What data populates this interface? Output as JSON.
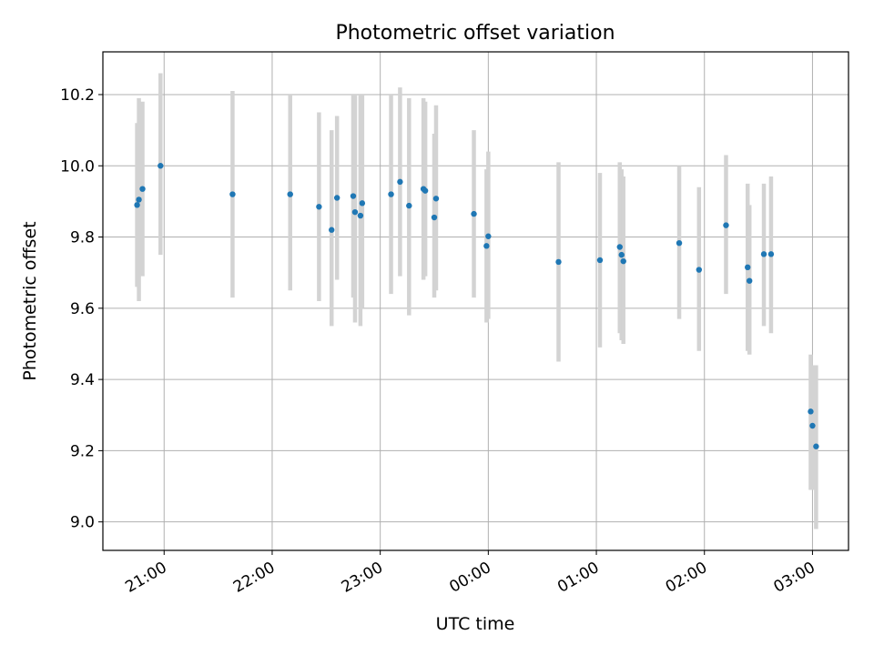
{
  "chart_data": {
    "type": "scatter",
    "title": "Photometric offset variation",
    "xlabel": "UTC time",
    "ylabel": "Photometric offset",
    "x_tick_labels": [
      "21:00",
      "22:00",
      "23:00",
      "00:00",
      "01:00",
      "02:00",
      "03:00"
    ],
    "y_tick_labels": [
      "9.0",
      "9.2",
      "9.4",
      "9.6",
      "9.8",
      "10.0",
      "10.2"
    ],
    "ylim": [
      8.92,
      10.32
    ],
    "grid": true,
    "errorbar_color": "#d3d3d3",
    "marker_color": "#1f77b4",
    "points": [
      {
        "x": "20:45",
        "y": 9.89,
        "lo": 9.66,
        "hi": 10.12
      },
      {
        "x": "20:46",
        "y": 9.905,
        "lo": 9.62,
        "hi": 10.19
      },
      {
        "x": "20:48",
        "y": 9.935,
        "lo": 9.69,
        "hi": 10.18
      },
      {
        "x": "20:58",
        "y": 10.0,
        "lo": 9.75,
        "hi": 10.26
      },
      {
        "x": "21:38",
        "y": 9.92,
        "lo": 9.63,
        "hi": 10.21
      },
      {
        "x": "22:10",
        "y": 9.92,
        "lo": 9.65,
        "hi": 10.2
      },
      {
        "x": "22:26",
        "y": 9.885,
        "lo": 9.62,
        "hi": 10.15
      },
      {
        "x": "22:33",
        "y": 9.82,
        "lo": 9.55,
        "hi": 10.1
      },
      {
        "x": "22:36",
        "y": 9.91,
        "lo": 9.68,
        "hi": 10.14
      },
      {
        "x": "22:45",
        "y": 9.915,
        "lo": 9.63,
        "hi": 10.2
      },
      {
        "x": "22:46",
        "y": 9.87,
        "lo": 9.56,
        "hi": 10.2
      },
      {
        "x": "22:49",
        "y": 9.86,
        "lo": 9.55,
        "hi": 10.2
      },
      {
        "x": "22:50",
        "y": 9.895,
        "lo": 9.6,
        "hi": 10.2
      },
      {
        "x": "23:06",
        "y": 9.92,
        "lo": 9.64,
        "hi": 10.2
      },
      {
        "x": "23:11",
        "y": 9.955,
        "lo": 9.69,
        "hi": 10.22
      },
      {
        "x": "23:16",
        "y": 9.888,
        "lo": 9.58,
        "hi": 10.19
      },
      {
        "x": "23:24",
        "y": 9.935,
        "lo": 9.68,
        "hi": 10.19
      },
      {
        "x": "23:25",
        "y": 9.93,
        "lo": 9.69,
        "hi": 10.18
      },
      {
        "x": "23:30",
        "y": 9.855,
        "lo": 9.63,
        "hi": 10.09
      },
      {
        "x": "23:31",
        "y": 9.908,
        "lo": 9.65,
        "hi": 10.17
      },
      {
        "x": "23:52",
        "y": 9.865,
        "lo": 9.63,
        "hi": 10.1
      },
      {
        "x": "23:59",
        "y": 9.775,
        "lo": 9.56,
        "hi": 9.99
      },
      {
        "x": "00:00",
        "y": 9.802,
        "lo": 9.57,
        "hi": 10.04
      },
      {
        "x": "00:39",
        "y": 9.73,
        "lo": 9.45,
        "hi": 10.01
      },
      {
        "x": "01:02",
        "y": 9.735,
        "lo": 9.49,
        "hi": 9.98
      },
      {
        "x": "01:13",
        "y": 9.772,
        "lo": 9.53,
        "hi": 10.01
      },
      {
        "x": "01:14",
        "y": 9.75,
        "lo": 9.51,
        "hi": 9.99
      },
      {
        "x": "01:15",
        "y": 9.732,
        "lo": 9.5,
        "hi": 9.97
      },
      {
        "x": "01:46",
        "y": 9.783,
        "lo": 9.57,
        "hi": 10.0
      },
      {
        "x": "01:57",
        "y": 9.708,
        "lo": 9.48,
        "hi": 9.94
      },
      {
        "x": "02:12",
        "y": 9.833,
        "lo": 9.64,
        "hi": 10.03
      },
      {
        "x": "02:24",
        "y": 9.715,
        "lo": 9.48,
        "hi": 9.95
      },
      {
        "x": "02:25",
        "y": 9.677,
        "lo": 9.47,
        "hi": 9.89
      },
      {
        "x": "02:33",
        "y": 9.752,
        "lo": 9.55,
        "hi": 9.95
      },
      {
        "x": "02:37",
        "y": 9.752,
        "lo": 9.53,
        "hi": 9.97
      },
      {
        "x": "02:59",
        "y": 9.31,
        "lo": 9.09,
        "hi": 9.47
      },
      {
        "x": "03:00",
        "y": 9.27,
        "lo": 9.09,
        "hi": 9.44
      },
      {
        "x": "03:02",
        "y": 9.212,
        "lo": 8.98,
        "hi": 9.44
      }
    ]
  }
}
